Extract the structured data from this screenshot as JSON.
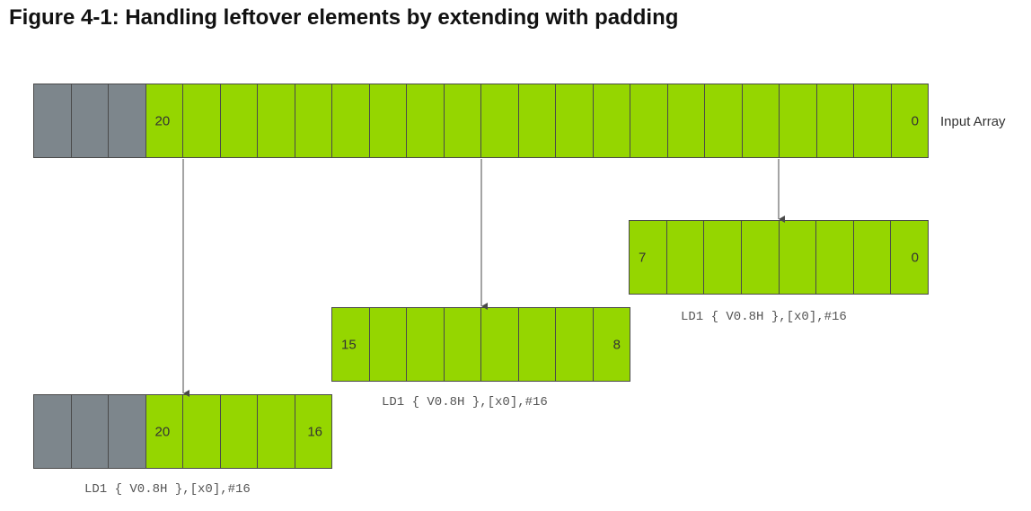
{
  "title": "Figure 4-1: Handling leftover elements by extending with padding",
  "colors": {
    "data_cell": "#95d600",
    "padding_cell": "#7d868c",
    "border": "#4a4a4a",
    "arrow": "#4a4a4a"
  },
  "input_array": {
    "label": "Input Array",
    "padding_cells": 3,
    "data_cells": 21,
    "first_label": "20",
    "last_label": "0"
  },
  "load_1": {
    "cells": 8,
    "first_label": "7",
    "last_label": "0",
    "instruction": "LD1 { V0.8H },[x0],#16"
  },
  "load_2": {
    "cells": 8,
    "first_label": "15",
    "last_label": "8",
    "instruction": "LD1 { V0.8H },[x0],#16"
  },
  "load_3": {
    "padding_cells": 3,
    "data_cells": 5,
    "first_label": "20",
    "last_label": "16",
    "instruction": "LD1 { V0.8H },[x0],#16"
  }
}
